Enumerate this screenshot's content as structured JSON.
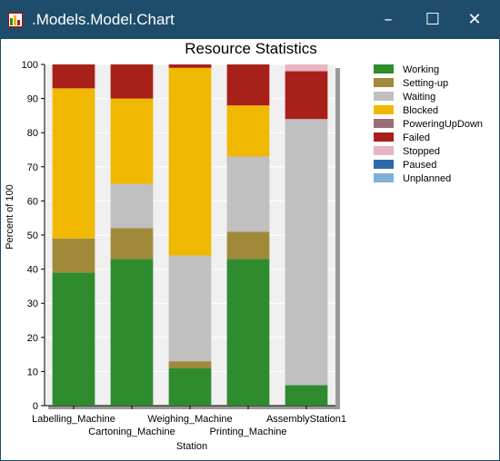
{
  "window": {
    "title": ".Models.Model.Chart",
    "minimize_glyph": "–",
    "maximize_glyph": "☐",
    "close_glyph": "✕",
    "titlebar_color": "#1e4d6b"
  },
  "chart_data": {
    "type": "bar",
    "stacked": true,
    "title": "Resource Statistics",
    "xlabel": "Station",
    "ylabel": "Percent of 100",
    "ylim": [
      0,
      100
    ],
    "yticks": [
      0,
      10,
      20,
      30,
      40,
      50,
      60,
      70,
      80,
      90,
      100
    ],
    "grid": true,
    "legend_position": "right",
    "categories": [
      "Labelling_Machine",
      "Cartoning_Machine",
      "Weighing_Machine",
      "Printing_Machine",
      "AssemblyStation1"
    ],
    "series": [
      {
        "name": "Working",
        "color": "#2e8b2e",
        "values": [
          39,
          43,
          11,
          43,
          6
        ]
      },
      {
        "name": "Setting-up",
        "color": "#a08a3a",
        "values": [
          10,
          9,
          2,
          8,
          0
        ]
      },
      {
        "name": "Waiting",
        "color": "#c0c0c0",
        "values": [
          0,
          13,
          31,
          22,
          78
        ]
      },
      {
        "name": "Blocked",
        "color": "#f0b800",
        "values": [
          44,
          25,
          55,
          15,
          0
        ]
      },
      {
        "name": "PoweringUpDown",
        "color": "#9c6b78",
        "values": [
          0,
          0,
          0,
          0,
          0
        ]
      },
      {
        "name": "Failed",
        "color": "#a8201a",
        "values": [
          7,
          10,
          1,
          12,
          14
        ]
      },
      {
        "name": "Stopped",
        "color": "#e8b4c0",
        "values": [
          0,
          0,
          0,
          0,
          2
        ]
      },
      {
        "name": "Paused",
        "color": "#2f6aa8",
        "values": [
          0,
          0,
          0,
          0,
          0
        ]
      },
      {
        "name": "Unplanned",
        "color": "#7fb0d8",
        "values": [
          0,
          0,
          0,
          0,
          0
        ]
      }
    ]
  }
}
